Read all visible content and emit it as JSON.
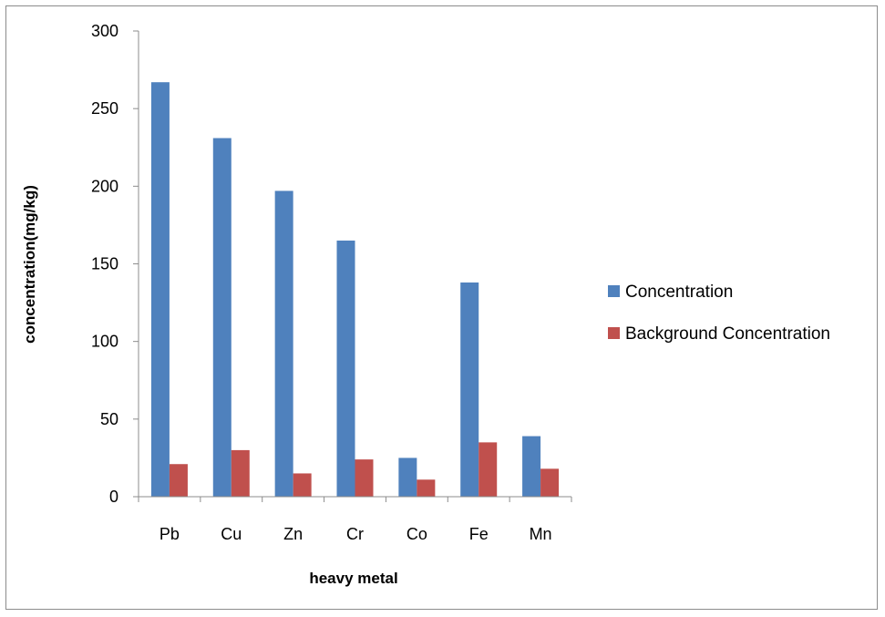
{
  "chart_data": {
    "type": "bar",
    "title": "",
    "xlabel": "heavy metal",
    "ylabel": "concentration(mg/kg)",
    "categories": [
      "Pb",
      "Cu",
      "Zn",
      "Cr",
      "Co",
      "Fe",
      "Mn"
    ],
    "series": [
      {
        "name": "Concentration",
        "color": "#4f81bd",
        "values": [
          267,
          231,
          197,
          165,
          25,
          138,
          39
        ]
      },
      {
        "name": "Background Concentration",
        "color": "#c0504d",
        "values": [
          21,
          30,
          15,
          24,
          11,
          35,
          18
        ]
      }
    ],
    "ylim": [
      0,
      300
    ],
    "yticks": [
      0,
      50,
      100,
      150,
      200,
      250,
      300
    ],
    "grid": false,
    "legend_position": "right"
  }
}
